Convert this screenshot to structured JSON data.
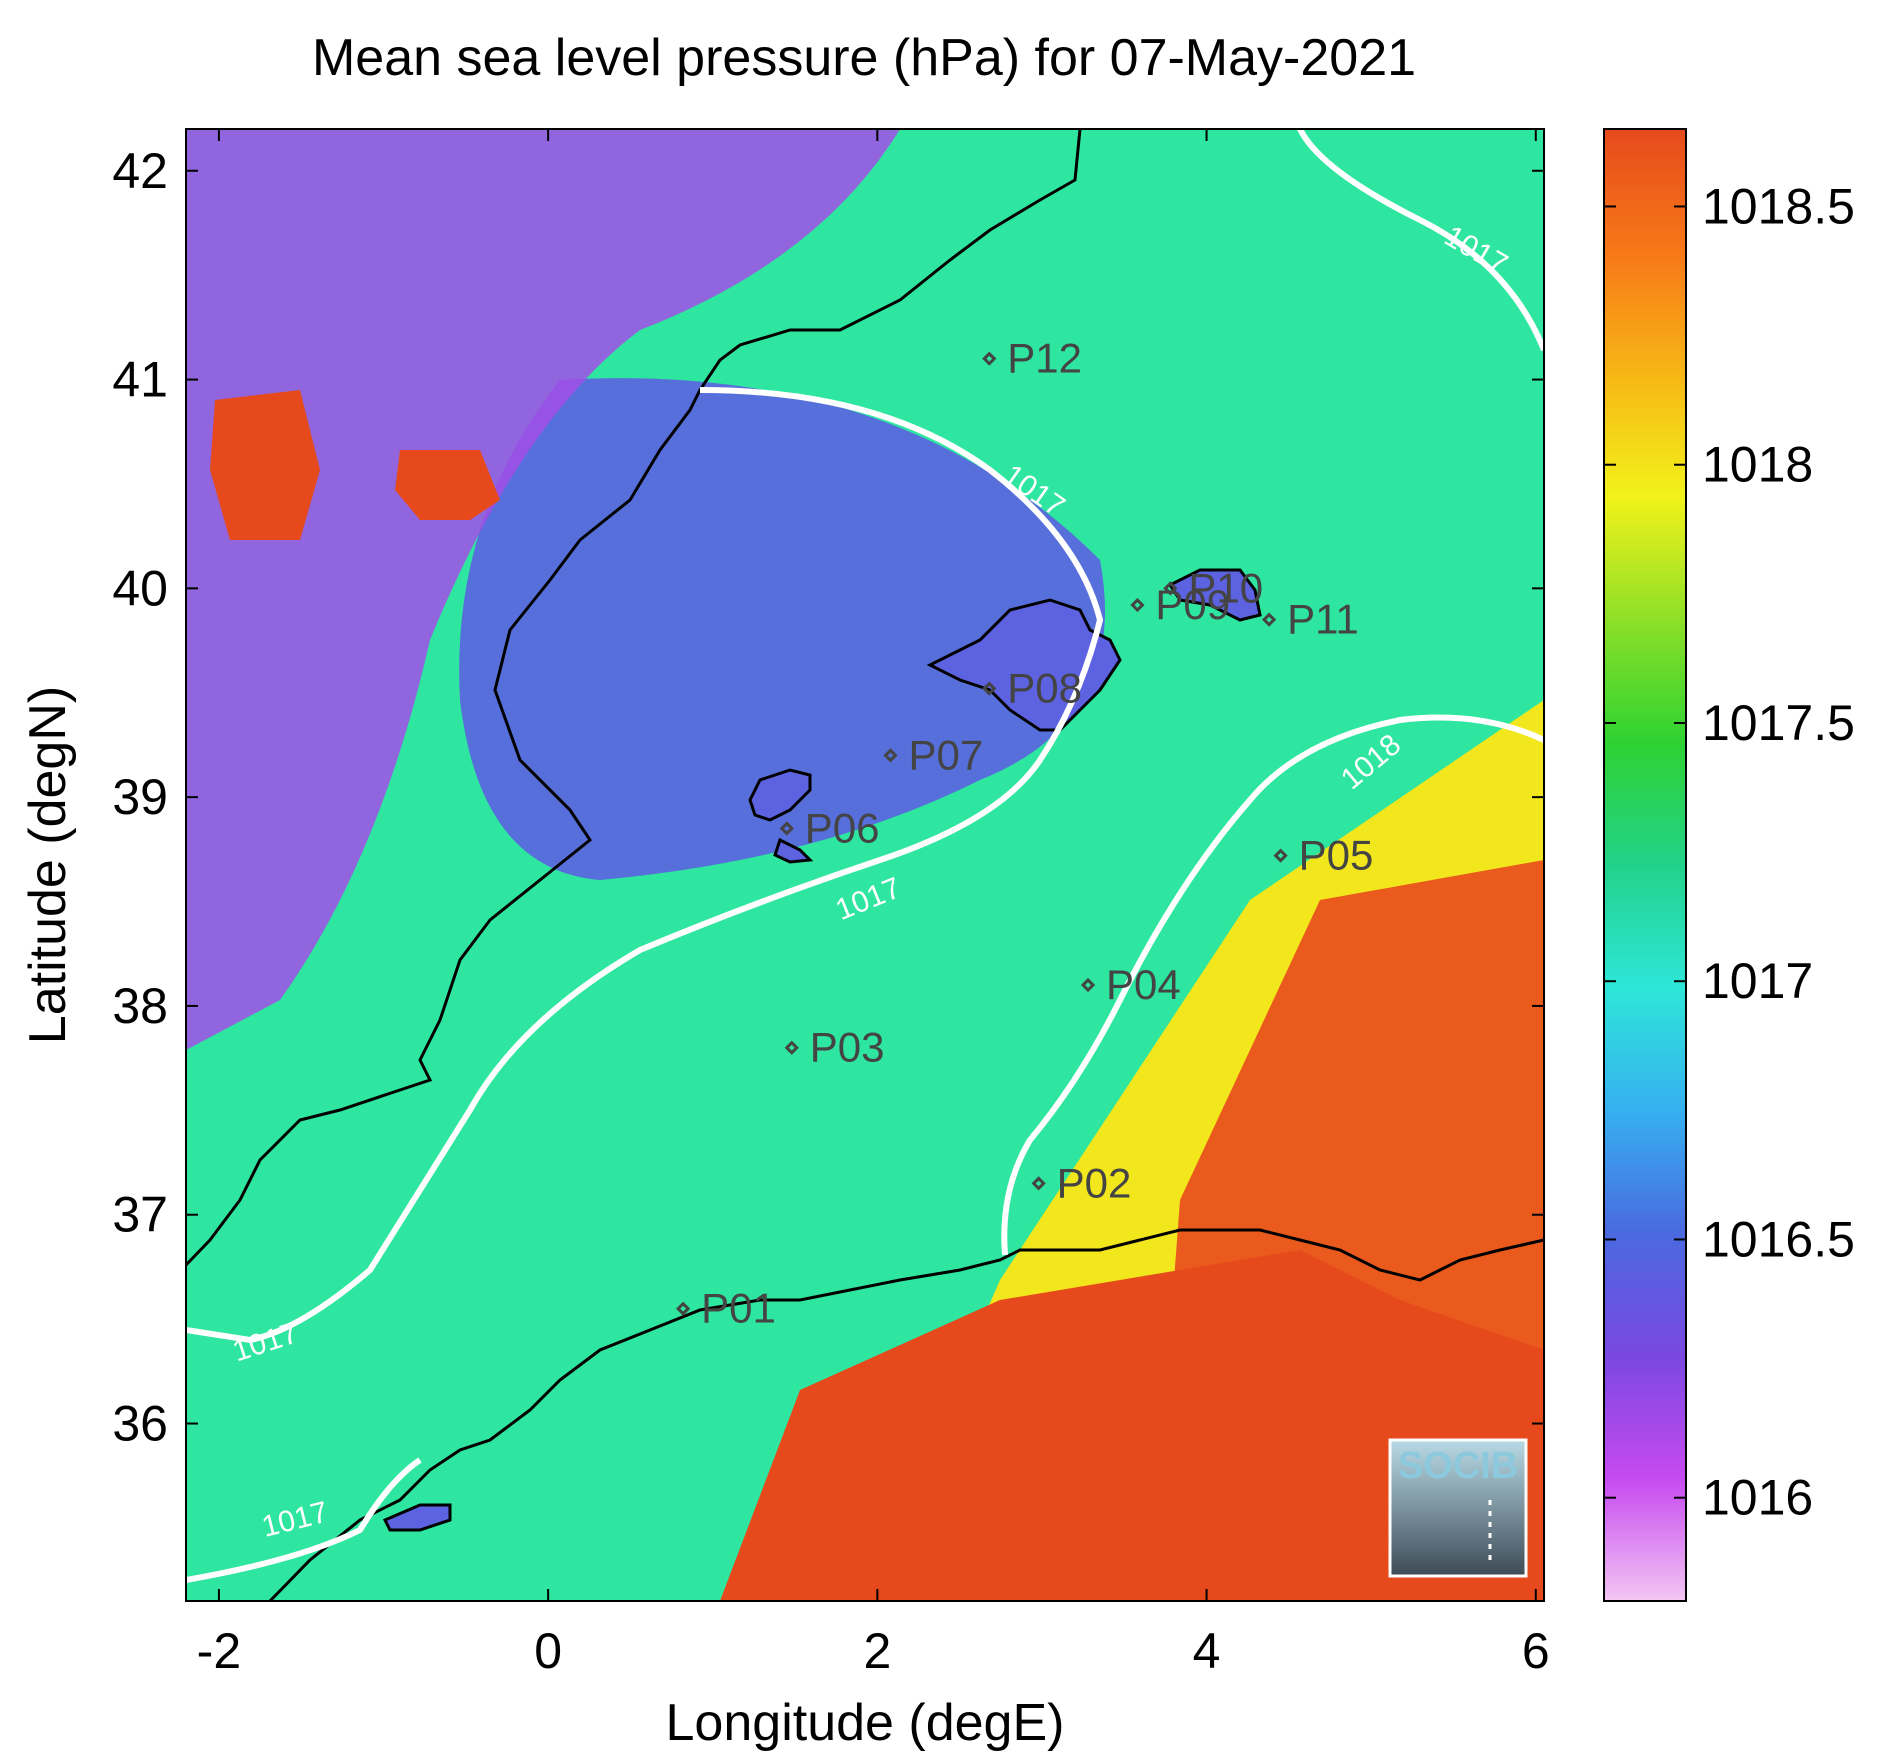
{
  "title": "Mean sea level pressure (hPa) for 07-May-2021",
  "xlabel": "Longitude (degE)",
  "ylabel": "Latitude (degN)",
  "map": {
    "x_ticks": [
      "-2",
      "0",
      "2",
      "4",
      "6"
    ],
    "y_ticks": [
      "36",
      "37",
      "38",
      "39",
      "40",
      "41",
      "42"
    ],
    "xlim": [
      -2.2,
      6.05
    ],
    "ylim": [
      35.15,
      42.2
    ],
    "stations": [
      {
        "label": "P01",
        "lon": 0.82,
        "lat": 36.55
      },
      {
        "label": "P02",
        "lon": 2.98,
        "lat": 37.15
      },
      {
        "label": "P03",
        "lon": 1.48,
        "lat": 37.8
      },
      {
        "label": "P04",
        "lon": 3.28,
        "lat": 38.1
      },
      {
        "label": "P05",
        "lon": 4.45,
        "lat": 38.72
      },
      {
        "label": "P06",
        "lon": 1.45,
        "lat": 38.85
      },
      {
        "label": "P07",
        "lon": 2.08,
        "lat": 39.2
      },
      {
        "label": "P08",
        "lon": 2.68,
        "lat": 39.52
      },
      {
        "label": "P09",
        "lon": 3.58,
        "lat": 39.92
      },
      {
        "label": "P10",
        "lon": 3.78,
        "lat": 40.0
      },
      {
        "label": "P11",
        "lon": 4.38,
        "lat": 39.85
      },
      {
        "label": "P12",
        "lon": 2.68,
        "lat": 41.1
      }
    ],
    "contour_labels": [
      "1017",
      "1017",
      "1017",
      "1018",
      "1017",
      "1017"
    ]
  },
  "colorbar": {
    "ticks": [
      "1016",
      "1016.5",
      "1017",
      "1017.5",
      "1018",
      "1018.5"
    ],
    "range": [
      1015.8,
      1018.65
    ],
    "colors": [
      "#f3c6f3",
      "#c64af0",
      "#7a48e0",
      "#4a6ae0",
      "#36b0f0",
      "#2ee6d8",
      "#22d28a",
      "#2ed232",
      "#8ee028",
      "#f2f21a",
      "#f7b616",
      "#f77818",
      "#e64a1c"
    ]
  },
  "logo": {
    "text": "SOCIB"
  },
  "colors": {
    "contour": "#ffffff",
    "coast": "#000000",
    "station": "#444444"
  }
}
